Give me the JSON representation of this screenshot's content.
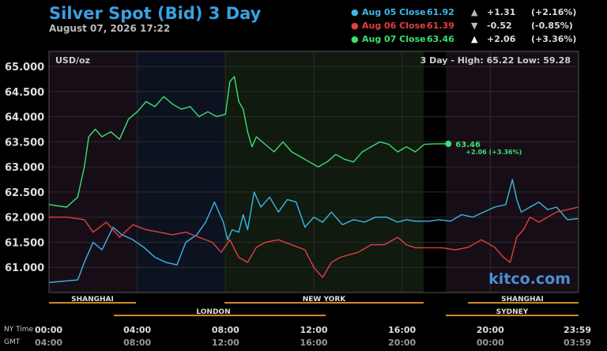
{
  "header": {
    "title": "Silver Spot (Bid) 3 Day",
    "subtitle": "August 07, 2026 17:22"
  },
  "closes": [
    {
      "label": "Aug 05 Close",
      "price": "61.92",
      "arrow": "▲",
      "change": "+1.31",
      "pct": "(+2.16%)",
      "color": "#3ab8e8"
    },
    {
      "label": "Aug 06 Close",
      "price": "61.39",
      "arrow": "▼",
      "change": "-0.52",
      "pct": "(-0.85%)",
      "color": "#e04040"
    },
    {
      "label": "Aug 07 Close",
      "price": "63.46",
      "arrow": "▲",
      "change": "+2.06",
      "pct": "(+3.36%)",
      "color": "#3ae070"
    }
  ],
  "info": {
    "unit": "USD/oz",
    "range_label": "3 Day - High: 65.22  Low: 59.28",
    "current_value": "63.46",
    "current_change": "+2.06 (+3.36%)",
    "watermark": "kitco.com"
  },
  "footer": {
    "ny_time_label": "NY Time",
    "gmt_label": "GMT"
  },
  "sessions": {
    "row1": [
      "SHANGHAI",
      "NEW YORK",
      "SHANGHAI"
    ],
    "row2": [
      "LONDON",
      "SYDNEY"
    ]
  },
  "chart_data": {
    "type": "line",
    "ylim": [
      60.5,
      65.3
    ],
    "y_ticks": [
      "65.000",
      "64.500",
      "64.000",
      "63.500",
      "63.000",
      "62.500",
      "62.000",
      "61.500",
      "61.000"
    ],
    "x_ticks_ny": [
      "00:00",
      "04:00",
      "08:00",
      "12:00",
      "16:00",
      "20:00",
      "23:59"
    ],
    "x_ticks_gmt": [
      "04:00",
      "08:00",
      "12:00",
      "16:00",
      "20:00",
      "00:00",
      "03:59"
    ],
    "series": [
      {
        "name": "Aug 05",
        "color": "#3ab8e8",
        "x": [
          0,
          1.3,
          1.6,
          2.0,
          2.4,
          2.9,
          3.3,
          3.8,
          4.3,
          4.8,
          5.3,
          5.8,
          6.2,
          6.7,
          7.1,
          7.5,
          7.9,
          8.1,
          8.3,
          8.6,
          8.8,
          9.0,
          9.3,
          9.6,
          10.0,
          10.4,
          10.8,
          11.2,
          11.6,
          12.0,
          12.4,
          12.8,
          13.3,
          13.8,
          14.3,
          14.8,
          15.3,
          15.8,
          16.2,
          16.6,
          17.2,
          17.7,
          18.2,
          18.7,
          19.2,
          19.7,
          20.2,
          20.7,
          21.0,
          21.2,
          21.4,
          21.8,
          22.2,
          22.6,
          23.0,
          23.5,
          23.98
        ],
        "y": [
          60.7,
          60.75,
          61.1,
          61.5,
          61.35,
          61.8,
          61.65,
          61.55,
          61.4,
          61.2,
          61.1,
          61.05,
          61.5,
          61.65,
          61.9,
          62.3,
          61.9,
          61.55,
          61.75,
          61.7,
          62.05,
          61.75,
          62.5,
          62.2,
          62.4,
          62.1,
          62.35,
          62.3,
          61.8,
          62.0,
          61.9,
          62.1,
          61.85,
          61.95,
          61.9,
          62.0,
          62.0,
          61.9,
          61.95,
          61.92,
          61.92,
          61.95,
          61.92,
          62.05,
          62.0,
          62.1,
          62.2,
          62.25,
          62.75,
          62.35,
          62.1,
          62.2,
          62.3,
          62.15,
          62.2,
          61.95,
          61.97
        ]
      },
      {
        "name": "Aug 06",
        "color": "#e04040",
        "x": [
          0,
          0.8,
          1.6,
          2.0,
          2.6,
          3.2,
          3.8,
          4.4,
          5.0,
          5.6,
          6.2,
          6.8,
          7.4,
          7.8,
          8.2,
          8.6,
          9.0,
          9.4,
          9.8,
          10.4,
          11.0,
          11.6,
          12.0,
          12.4,
          12.8,
          13.2,
          13.6,
          14.0,
          14.6,
          15.2,
          15.8,
          16.2,
          16.6,
          17.2,
          17.8,
          18.4,
          19.0,
          19.6,
          20.2,
          20.6,
          20.9,
          21.2,
          21.5,
          21.8,
          22.2,
          22.6,
          23.0,
          23.5,
          23.98
        ],
        "y": [
          62.0,
          62.0,
          61.95,
          61.7,
          61.9,
          61.6,
          61.85,
          61.75,
          61.7,
          61.65,
          61.7,
          61.6,
          61.5,
          61.3,
          61.55,
          61.2,
          61.1,
          61.4,
          61.5,
          61.55,
          61.45,
          61.35,
          61.0,
          60.8,
          61.1,
          61.2,
          61.25,
          61.3,
          61.45,
          61.45,
          61.6,
          61.45,
          61.39,
          61.39,
          61.39,
          61.35,
          61.4,
          61.55,
          61.4,
          61.2,
          61.1,
          61.6,
          61.75,
          62.0,
          61.9,
          62.0,
          62.1,
          62.15,
          62.2
        ]
      },
      {
        "name": "Aug 07",
        "color": "#3ae070",
        "x": [
          0,
          0.8,
          1.3,
          1.6,
          1.8,
          2.1,
          2.4,
          2.8,
          3.2,
          3.6,
          4.0,
          4.4,
          4.8,
          5.2,
          5.6,
          6.0,
          6.4,
          6.8,
          7.2,
          7.6,
          8.0,
          8.2,
          8.4,
          8.6,
          8.8,
          9.0,
          9.2,
          9.4,
          9.8,
          10.2,
          10.6,
          11.0,
          11.4,
          11.8,
          12.2,
          12.6,
          13.0,
          13.4,
          13.8,
          14.2,
          14.6,
          15.0,
          15.4,
          15.8,
          16.2,
          16.6,
          17.0,
          17.5,
          18.1
        ],
        "y": [
          62.25,
          62.2,
          62.4,
          63.0,
          63.6,
          63.75,
          63.6,
          63.7,
          63.55,
          63.95,
          64.1,
          64.3,
          64.2,
          64.4,
          64.25,
          64.15,
          64.2,
          64.0,
          64.1,
          64.0,
          64.05,
          64.7,
          64.8,
          64.3,
          64.15,
          63.7,
          63.4,
          63.6,
          63.45,
          63.3,
          63.5,
          63.3,
          63.2,
          63.1,
          63.0,
          63.1,
          63.25,
          63.15,
          63.1,
          63.3,
          63.4,
          63.5,
          63.45,
          63.3,
          63.4,
          63.3,
          63.45,
          63.46,
          63.46
        ]
      }
    ]
  }
}
